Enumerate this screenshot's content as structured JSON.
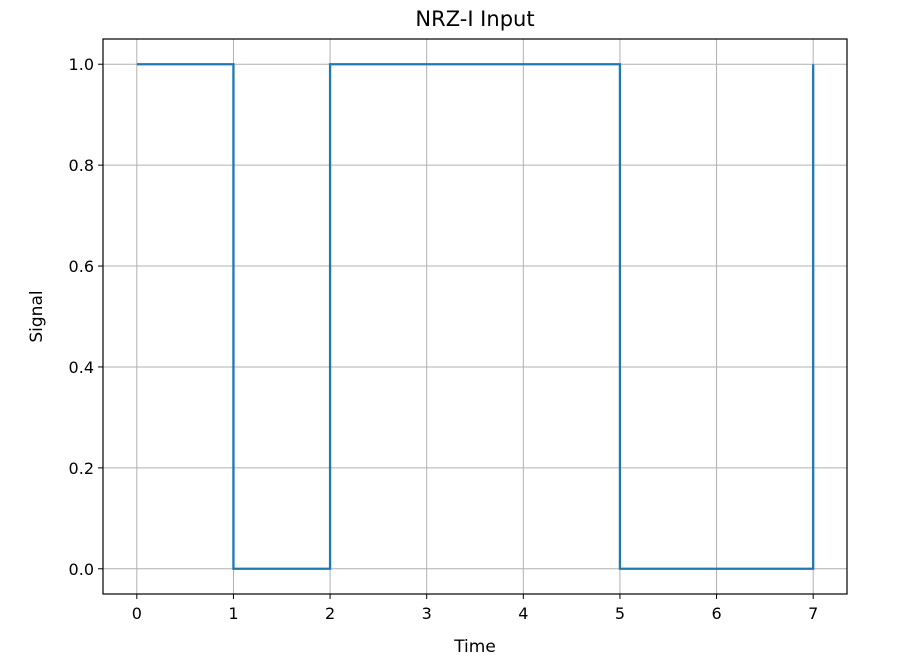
{
  "chart_data": {
    "type": "line",
    "drawstyle": "steps-post",
    "title": "NRZ-I Input",
    "xlabel": "Time",
    "ylabel": "Signal",
    "xlim": [
      -0.35,
      7.35
    ],
    "ylim": [
      -0.05,
      1.05
    ],
    "xticks": [
      0,
      1,
      2,
      3,
      4,
      5,
      6,
      7
    ],
    "xtick_labels": [
      "0",
      "1",
      "2",
      "3",
      "4",
      "5",
      "6",
      "7"
    ],
    "yticks": [
      0.0,
      0.2,
      0.4,
      0.6,
      0.8,
      1.0
    ],
    "ytick_labels": [
      "0.0",
      "0.2",
      "0.4",
      "0.6",
      "0.8",
      "1.0"
    ],
    "grid": true,
    "series": [
      {
        "name": "NRZ-I Input",
        "color": "#1f77b4",
        "x": [
          0,
          1,
          2,
          3,
          4,
          5,
          6,
          7
        ],
        "values": [
          1,
          0,
          1,
          1,
          1,
          0,
          0,
          1
        ]
      }
    ]
  }
}
